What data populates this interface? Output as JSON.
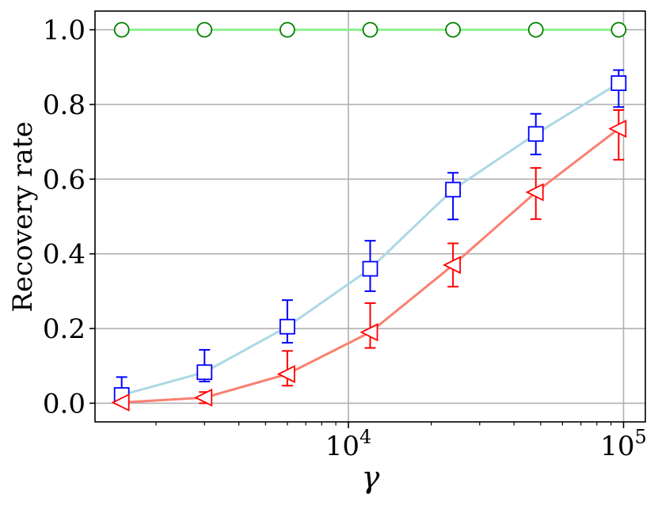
{
  "chart_data": {
    "type": "line",
    "xlabel": "γ",
    "ylabel": "Recovery rate",
    "x_scale": "log",
    "xlim": [
      1200,
      120000
    ],
    "ylim": [
      -0.05,
      1.05
    ],
    "x_major_ticks": [
      10000,
      100000
    ],
    "x_major_tick_labels": [
      {
        "base": "10",
        "exp": "4"
      },
      {
        "base": "10",
        "exp": "5"
      }
    ],
    "y_ticks": [
      0.0,
      0.2,
      0.4,
      0.6,
      0.8,
      1.0
    ],
    "y_tick_labels": [
      "0.0",
      "0.2",
      "0.4",
      "0.6",
      "0.8",
      "1.0"
    ],
    "grid": true,
    "x": [
      1500,
      3000,
      6000,
      12000,
      24000,
      48000,
      96000
    ],
    "series": [
      {
        "marker": "circle",
        "line_color": "#90ee90",
        "marker_color": "#008000",
        "values": [
          1.0,
          1.0,
          1.0,
          1.0,
          1.0,
          1.0,
          1.0
        ]
      },
      {
        "marker": "square",
        "line_color": "#add8e6",
        "marker_color": "#0000ff",
        "values": [
          0.022,
          0.083,
          0.205,
          0.36,
          0.572,
          0.721,
          0.857
        ],
        "err_low": [
          0.0,
          0.058,
          0.162,
          0.3,
          0.492,
          0.666,
          0.793
        ],
        "err_high": [
          0.07,
          0.143,
          0.276,
          0.435,
          0.617,
          0.775,
          0.892
        ]
      },
      {
        "marker": "triangle-left",
        "line_color": "#fa8072",
        "marker_color": "#ff0000",
        "values": [
          0.002,
          0.015,
          0.078,
          0.19,
          0.37,
          0.565,
          0.735
        ],
        "err_low": [
          0.0,
          0.0,
          0.047,
          0.148,
          0.312,
          0.493,
          0.652
        ],
        "err_high": [
          0.0,
          0.03,
          0.14,
          0.268,
          0.428,
          0.63,
          0.785
        ]
      }
    ]
  }
}
